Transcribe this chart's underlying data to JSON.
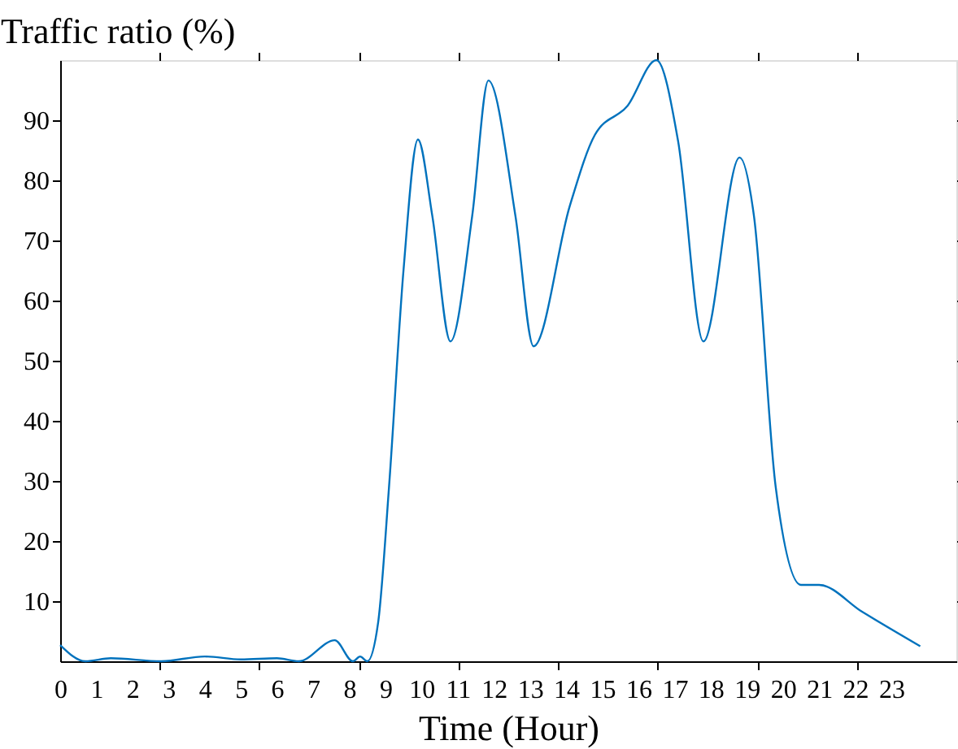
{
  "chart_data": {
    "type": "line",
    "ylabel": "Traffic ratio (%)",
    "xlabel": "Time (Hour)",
    "xlim": [
      0,
      24.8
    ],
    "ylim": [
      0,
      100
    ],
    "xticks": [
      0,
      1,
      2,
      3,
      4,
      5,
      6,
      7,
      8,
      9,
      10,
      11,
      12,
      13,
      14,
      15,
      16,
      17,
      18,
      19,
      20,
      21,
      22,
      23,
      {
        "value": 2.76,
        "label": null
      },
      {
        "value": 5.51,
        "label": null
      },
      {
        "value": 8.27,
        "label": null
      },
      {
        "value": 11.02,
        "label": null
      },
      {
        "value": 13.78,
        "label": null
      },
      {
        "value": 16.53,
        "label": null
      },
      {
        "value": 19.29,
        "label": null
      },
      {
        "value": 22.04,
        "label": null
      }
    ],
    "yticks": [
      10,
      20,
      30,
      40,
      50,
      60,
      70,
      80,
      90
    ],
    "grid": false,
    "marker": "none",
    "line_style": "solid",
    "series": [
      {
        "color": "#0072bd",
        "x": [
          0,
          0.7,
          1.4,
          2.8,
          4.0,
          5.0,
          6.0,
          6.6,
          7.6,
          8.1,
          8.3,
          8.5,
          8.8,
          9.1,
          9.5,
          9.9,
          10.3,
          10.8,
          11.4,
          11.85,
          12.6,
          13.1,
          14.1,
          14.8,
          15.7,
          16.5,
          17.1,
          17.8,
          18.8,
          19.2,
          19.8,
          20.5,
          21.0,
          22.2,
          23.8
        ],
        "values": [
          2.7,
          0,
          0.5,
          0,
          0.8,
          0.3,
          0.5,
          0,
          3.5,
          0,
          0.8,
          0,
          6.5,
          29,
          65,
          86.8,
          74,
          53.2,
          74,
          96.6,
          74,
          52.4,
          75.7,
          87.6,
          92.4,
          100,
          86.5,
          53.2,
          83.8,
          74,
          29,
          12.7,
          12.7,
          8.2,
          2.5
        ]
      }
    ]
  }
}
